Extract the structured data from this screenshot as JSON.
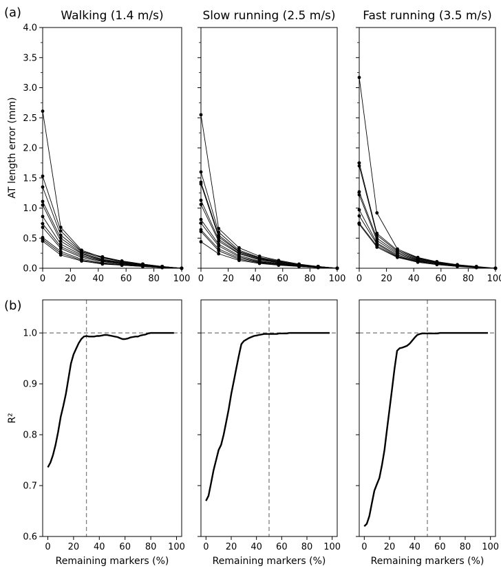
{
  "panel_labels": {
    "a": "(a)",
    "b": "(b)"
  },
  "chart_data": [
    {
      "type": "line",
      "row": "a",
      "title": "Walking (1.4 m/s)",
      "xlabel": "",
      "ylabel": "AT length error (mm)",
      "xlim": [
        0,
        100
      ],
      "ylim": [
        0,
        4.0
      ],
      "xticks": [
        "0",
        "20",
        "40",
        "60",
        "80",
        "100"
      ],
      "yticks": [
        "0.0",
        "0.5",
        "1.0",
        "1.5",
        "2.0",
        "2.5",
        "3.0",
        "3.5",
        "4.0"
      ],
      "x": [
        0,
        13,
        28,
        43,
        57,
        72,
        86,
        100
      ],
      "series": [
        {
          "values": [
            2.61,
            0.68,
            0.3,
            0.18,
            0.12,
            0.07,
            0.03,
            0.0
          ]
        },
        {
          "values": [
            1.53,
            0.62,
            0.28,
            0.19,
            0.12,
            0.07,
            0.03,
            0.0
          ]
        },
        {
          "values": [
            1.35,
            0.55,
            0.27,
            0.17,
            0.11,
            0.06,
            0.03,
            0.0
          ]
        },
        {
          "values": [
            1.11,
            0.5,
            0.25,
            0.15,
            0.1,
            0.06,
            0.02,
            0.0
          ]
        },
        {
          "values": [
            1.05,
            0.45,
            0.24,
            0.14,
            0.09,
            0.05,
            0.02,
            0.0
          ]
        },
        {
          "values": [
            0.86,
            0.4,
            0.22,
            0.13,
            0.08,
            0.05,
            0.02,
            0.0
          ]
        },
        {
          "values": [
            0.74,
            0.36,
            0.2,
            0.12,
            0.08,
            0.04,
            0.02,
            0.0
          ]
        },
        {
          "values": [
            0.68,
            0.33,
            0.18,
            0.11,
            0.07,
            0.04,
            0.02,
            0.0
          ]
        },
        {
          "values": [
            0.51,
            0.28,
            0.15,
            0.09,
            0.06,
            0.03,
            0.01,
            0.0
          ]
        },
        {
          "values": [
            0.48,
            0.25,
            0.13,
            0.08,
            0.05,
            0.03,
            0.01,
            0.0
          ]
        },
        {
          "values": [
            0.45,
            0.22,
            0.12,
            0.07,
            0.05,
            0.03,
            0.01,
            0.0
          ]
        }
      ]
    },
    {
      "type": "line",
      "row": "a",
      "title": "Slow running (2.5 m/s)",
      "xlabel": "",
      "ylabel": "",
      "xlim": [
        0,
        100
      ],
      "ylim": [
        0,
        4.0
      ],
      "xticks": [
        "0",
        "20",
        "40",
        "60",
        "80",
        "100"
      ],
      "yticks": [],
      "x": [
        0,
        13,
        28,
        43,
        57,
        72,
        86,
        100
      ],
      "series": [
        {
          "values": [
            2.55,
            0.66,
            0.34,
            0.2,
            0.13,
            0.07,
            0.03,
            0.0
          ]
        },
        {
          "values": [
            1.6,
            0.6,
            0.3,
            0.18,
            0.12,
            0.06,
            0.03,
            0.0
          ]
        },
        {
          "values": [
            1.43,
            0.55,
            0.28,
            0.17,
            0.11,
            0.06,
            0.03,
            0.0
          ]
        },
        {
          "values": [
            1.4,
            0.52,
            0.27,
            0.16,
            0.1,
            0.05,
            0.02,
            0.0
          ]
        },
        {
          "values": [
            1.13,
            0.48,
            0.25,
            0.15,
            0.09,
            0.05,
            0.02,
            0.0
          ]
        },
        {
          "values": [
            1.06,
            0.45,
            0.24,
            0.14,
            0.09,
            0.05,
            0.02,
            0.0
          ]
        },
        {
          "values": [
            0.81,
            0.4,
            0.21,
            0.12,
            0.08,
            0.04,
            0.02,
            0.0
          ]
        },
        {
          "values": [
            0.75,
            0.37,
            0.19,
            0.11,
            0.07,
            0.04,
            0.02,
            0.0
          ]
        },
        {
          "values": [
            0.64,
            0.32,
            0.17,
            0.1,
            0.07,
            0.03,
            0.01,
            0.0
          ]
        },
        {
          "values": [
            0.61,
            0.29,
            0.15,
            0.09,
            0.06,
            0.03,
            0.01,
            0.0
          ]
        },
        {
          "values": [
            0.44,
            0.24,
            0.13,
            0.08,
            0.05,
            0.03,
            0.01,
            0.0
          ]
        }
      ]
    },
    {
      "type": "line",
      "row": "a",
      "title": "Fast running (3.5 m/s)",
      "xlabel": "",
      "ylabel": "",
      "xlim": [
        0,
        100
      ],
      "ylim": [
        0,
        4.0
      ],
      "xticks": [
        "0",
        "20",
        "40",
        "60",
        "80",
        "100"
      ],
      "yticks": [],
      "x": [
        0,
        13,
        28,
        43,
        57,
        72,
        86,
        100
      ],
      "series": [
        {
          "values": [
            3.17,
            0.92,
            0.32,
            0.18,
            0.11,
            0.06,
            0.03,
            0.0
          ]
        },
        {
          "values": [
            1.75,
            0.58,
            0.3,
            0.17,
            0.1,
            0.05,
            0.02,
            0.0
          ]
        },
        {
          "values": [
            1.7,
            0.55,
            0.28,
            0.16,
            0.1,
            0.05,
            0.02,
            0.0
          ]
        },
        {
          "values": [
            1.27,
            0.5,
            0.26,
            0.15,
            0.09,
            0.05,
            0.02,
            0.0
          ]
        },
        {
          "values": [
            1.22,
            0.46,
            0.24,
            0.14,
            0.08,
            0.04,
            0.02,
            0.0
          ]
        },
        {
          "values": [
            0.97,
            0.42,
            0.22,
            0.13,
            0.08,
            0.04,
            0.02,
            0.0
          ]
        },
        {
          "values": [
            0.87,
            0.4,
            0.2,
            0.12,
            0.07,
            0.04,
            0.02,
            0.0
          ]
        },
        {
          "values": [
            0.75,
            0.37,
            0.19,
            0.11,
            0.07,
            0.04,
            0.01,
            0.0
          ]
        },
        {
          "values": [
            0.73,
            0.35,
            0.18,
            0.1,
            0.06,
            0.03,
            0.01,
            0.0
          ]
        }
      ]
    },
    {
      "type": "line",
      "row": "b",
      "title": "",
      "xlabel": "Remaining markers (%)",
      "ylabel": "R²",
      "xlim": [
        -4,
        104
      ],
      "ylim": [
        0.6,
        1.065
      ],
      "xticks": [
        "0",
        "20",
        "40",
        "60",
        "80",
        "100"
      ],
      "yticks": [
        "0.6",
        "0.7",
        "0.8",
        "0.9",
        "1.0"
      ],
      "threshold_x": 30,
      "reference_y": 1.0,
      "x": [
        0,
        2,
        4,
        6,
        8,
        10,
        12,
        14,
        16,
        18,
        20,
        22,
        24,
        26,
        28,
        30,
        32,
        34,
        36,
        38,
        40,
        42,
        44,
        46,
        48,
        50,
        52,
        54,
        56,
        58,
        60,
        62,
        64,
        66,
        68,
        70,
        72,
        74,
        76,
        78,
        80,
        82,
        84,
        86,
        88,
        90,
        92,
        94,
        96,
        98
      ],
      "series": [
        {
          "values": [
            0.736,
            0.745,
            0.76,
            0.78,
            0.805,
            0.835,
            0.856,
            0.88,
            0.91,
            0.94,
            0.958,
            0.969,
            0.98,
            0.988,
            0.993,
            0.994,
            0.993,
            0.993,
            0.993,
            0.994,
            0.994,
            0.995,
            0.996,
            0.996,
            0.995,
            0.994,
            0.993,
            0.992,
            0.99,
            0.988,
            0.988,
            0.989,
            0.991,
            0.992,
            0.993,
            0.993,
            0.995,
            0.996,
            0.997,
            0.999,
            1.0,
            1.0,
            1.0,
            1.0,
            1.0,
            1.0,
            1.0,
            1.0,
            1.0,
            1.0
          ]
        }
      ]
    },
    {
      "type": "line",
      "row": "b",
      "title": "",
      "xlabel": "Remaining markers (%)",
      "ylabel": "",
      "xlim": [
        -4,
        104
      ],
      "ylim": [
        0.6,
        1.065
      ],
      "xticks": [
        "0",
        "20",
        "40",
        "60",
        "80",
        "100"
      ],
      "yticks": [],
      "threshold_x": 50,
      "reference_y": 1.0,
      "x": [
        0,
        2,
        4,
        6,
        8,
        10,
        12,
        14,
        16,
        18,
        20,
        22,
        24,
        26,
        28,
        30,
        32,
        34,
        36,
        38,
        40,
        42,
        44,
        46,
        48,
        50,
        52,
        54,
        56,
        58,
        60,
        62,
        64,
        66,
        68,
        70,
        72,
        74,
        76,
        78,
        80,
        82,
        84,
        86,
        88,
        90,
        92,
        94,
        96,
        98
      ],
      "series": [
        {
          "values": [
            0.67,
            0.68,
            0.705,
            0.73,
            0.75,
            0.77,
            0.78,
            0.8,
            0.825,
            0.85,
            0.88,
            0.905,
            0.93,
            0.955,
            0.978,
            0.984,
            0.987,
            0.99,
            0.992,
            0.994,
            0.995,
            0.996,
            0.997,
            0.998,
            0.998,
            0.998,
            0.998,
            0.998,
            0.998,
            0.999,
            0.999,
            0.999,
            0.999,
            1.0,
            1.0,
            1.0,
            1.0,
            1.0,
            1.0,
            1.0,
            1.0,
            1.0,
            1.0,
            1.0,
            1.0,
            1.0,
            1.0,
            1.0,
            1.0,
            1.0
          ]
        }
      ]
    },
    {
      "type": "line",
      "row": "b",
      "title": "",
      "xlabel": "Remaining markers (%)",
      "ylabel": "",
      "xlim": [
        -4,
        104
      ],
      "ylim": [
        0.6,
        1.065
      ],
      "xticks": [
        "0",
        "20",
        "40",
        "60",
        "80",
        "100"
      ],
      "yticks": [],
      "threshold_x": 50,
      "reference_y": 1.0,
      "x": [
        0,
        2,
        4,
        6,
        8,
        10,
        12,
        14,
        16,
        18,
        20,
        22,
        24,
        26,
        28,
        30,
        32,
        34,
        36,
        38,
        40,
        42,
        44,
        46,
        48,
        50,
        52,
        54,
        56,
        58,
        60,
        62,
        64,
        66,
        68,
        70,
        72,
        74,
        76,
        78,
        80,
        82,
        84,
        86,
        88,
        90,
        92,
        94,
        96,
        98
      ],
      "series": [
        {
          "values": [
            0.62,
            0.625,
            0.64,
            0.665,
            0.69,
            0.703,
            0.715,
            0.74,
            0.77,
            0.81,
            0.85,
            0.89,
            0.93,
            0.965,
            0.97,
            0.971,
            0.973,
            0.975,
            0.979,
            0.985,
            0.991,
            0.996,
            0.998,
            0.999,
            0.999,
            0.999,
            0.999,
            0.999,
            0.999,
            0.999,
            1.0,
            1.0,
            1.0,
            1.0,
            1.0,
            1.0,
            1.0,
            1.0,
            1.0,
            1.0,
            1.0,
            1.0,
            1.0,
            1.0,
            1.0,
            1.0,
            1.0,
            1.0,
            1.0,
            1.0
          ]
        }
      ]
    }
  ]
}
